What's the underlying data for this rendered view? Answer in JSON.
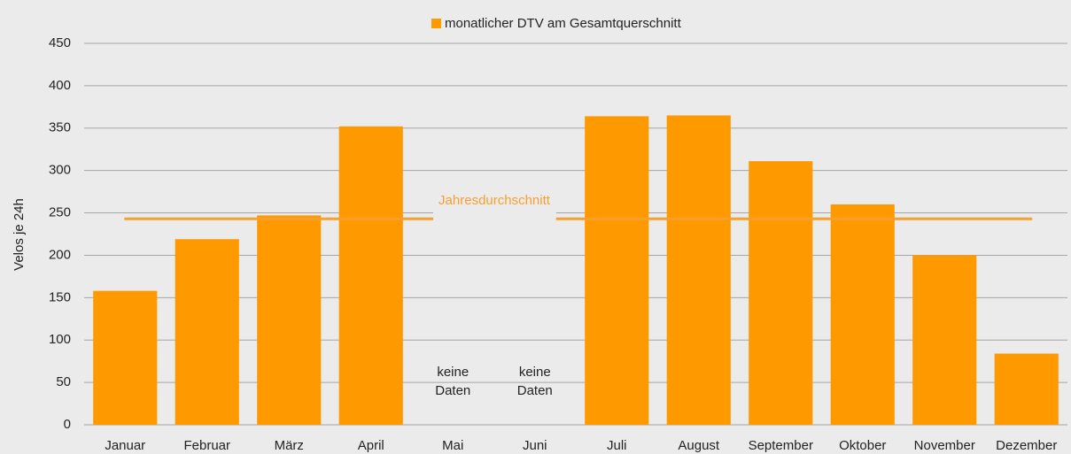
{
  "chart_data": {
    "type": "bar",
    "y_label": "Velos je 24h",
    "categories": [
      "Januar",
      "Februar",
      "März",
      "April",
      "Mai",
      "Juni",
      "Juli",
      "August",
      "September",
      "Oktober",
      "November",
      "Dezember"
    ],
    "series": [
      {
        "name": "monatlicher DTV am Gesamtquerschnitt",
        "color": "#ff9900",
        "values": [
          158,
          219,
          247,
          352,
          null,
          null,
          364,
          365,
          311,
          260,
          200,
          84
        ]
      }
    ],
    "ylim": [
      0,
      450
    ],
    "yticks": [
      0,
      50,
      100,
      150,
      200,
      250,
      300,
      350,
      400,
      450
    ],
    "grid": true,
    "legend": "top",
    "reference_lines": [
      {
        "value": 243,
        "label": "Jahresdurchschnitt",
        "color": "#f7a030"
      }
    ],
    "annotations": [
      {
        "x": "Mai",
        "lines": [
          "keine",
          "Daten"
        ]
      },
      {
        "x": "Juni",
        "lines": [
          "keine",
          "Daten"
        ]
      }
    ]
  }
}
